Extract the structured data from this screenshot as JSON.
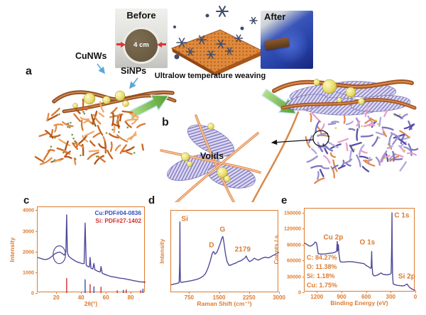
{
  "figure": {
    "panel_labels": {
      "a": "a",
      "b": "b",
      "c": "c",
      "d": "d",
      "e": "e"
    },
    "top": {
      "before_label": "Before",
      "before_diameter": "4 cm",
      "after_label": "After",
      "process_label": "Ultralow temperature weaving"
    },
    "schematic": {
      "cunws_label": "CuNWs",
      "sinps_label": "SiNPs",
      "voids_label": "Voids"
    },
    "colors": {
      "frame_orange": "#dd7b2f",
      "curve_purple": "#4f4b99",
      "legend_cu_blue": "#2f4fc4",
      "legend_si_red": "#d32f2f",
      "arrow_green": "#6cb43e",
      "sphere_yellow": "#e8dc6a",
      "wire_brown": "#9a5226",
      "mesh_purple": "#6a63b8"
    }
  },
  "chart_data": [
    {
      "id": "xrd",
      "type": "line",
      "panel": "c",
      "title": "",
      "xlabel": "2θ(°)",
      "ylabel": "Intensity",
      "xlim": [
        5,
        92
      ],
      "ylim": [
        0,
        4150
      ],
      "x_ticks": [
        20,
        40,
        60,
        80
      ],
      "y_ticks": [
        0,
        1000,
        2000,
        3000,
        4000
      ],
      "grid": false,
      "legend_position": "top-right",
      "legend": [
        {
          "label": "Cu:PDF#04-0836",
          "color": "#2f4fc4"
        },
        {
          "label": "Si: PDF#27-1402",
          "color": "#d32f2f"
        }
      ],
      "series": [
        {
          "name": "CuNWs/SiNPs XRD pattern",
          "color": "#4f4b99",
          "points": [
            [
              5,
              1720
            ],
            [
              7,
              1680
            ],
            [
              9,
              1640
            ],
            [
              11,
              1620
            ],
            [
              13,
              1640
            ],
            [
              15,
              1700
            ],
            [
              17,
              1800
            ],
            [
              19,
              1900
            ],
            [
              21,
              1960
            ],
            [
              23,
              1980
            ],
            [
              25,
              1900
            ],
            [
              26.5,
              1830
            ],
            [
              27.8,
              2000
            ],
            [
              28.4,
              3780
            ],
            [
              29,
              1950
            ],
            [
              30,
              1780
            ],
            [
              31.5,
              1700
            ],
            [
              33,
              1640
            ],
            [
              35,
              1560
            ],
            [
              37,
              1500
            ],
            [
              39,
              1460
            ],
            [
              41,
              1420
            ],
            [
              42.5,
              1420
            ],
            [
              43.3,
              3380
            ],
            [
              44.2,
              1340
            ],
            [
              45.5,
              1280
            ],
            [
              46.8,
              1260
            ],
            [
              47.3,
              1720
            ],
            [
              48,
              1200
            ],
            [
              49.5,
              1160
            ],
            [
              50.4,
              1430
            ],
            [
              51.2,
              1120
            ],
            [
              52.5,
              1080
            ],
            [
              54,
              1040
            ],
            [
              55.5,
              1020
            ],
            [
              56.1,
              1280
            ],
            [
              57,
              960
            ],
            [
              58.5,
              920
            ],
            [
              60,
              880
            ],
            [
              62,
              840
            ],
            [
              64,
              800
            ],
            [
              66,
              780
            ],
            [
              68,
              760
            ],
            [
              70,
              730
            ],
            [
              72,
              710
            ],
            [
              74,
              700
            ],
            [
              76,
              680
            ],
            [
              78,
              650
            ],
            [
              80,
              630
            ],
            [
              82,
              600
            ],
            [
              84,
              580
            ],
            [
              86,
              560
            ],
            [
              88,
              540
            ],
            [
              90,
              530
            ],
            [
              92,
              520
            ]
          ]
        }
      ],
      "reference_sticks": [
        {
          "name": "Si PDF#27-1402",
          "color": "#d32f2f",
          "peaks": [
            [
              28.4,
              720
            ],
            [
              47.3,
              430
            ],
            [
              56.1,
              300
            ],
            [
              69.2,
              130
            ],
            [
              76.4,
              170
            ],
            [
              88.1,
              140
            ]
          ]
        },
        {
          "name": "Cu PDF#04-0836",
          "color": "#2f4fc4",
          "peaks": [
            [
              43.3,
              660
            ],
            [
              50.4,
              320
            ],
            [
              74.1,
              150
            ],
            [
              89.9,
              210
            ]
          ]
        }
      ],
      "annotations": [
        {
          "type": "ellipse",
          "x": 22.5,
          "y": 1850,
          "rx": 5,
          "ry": 430
        }
      ]
    },
    {
      "id": "raman",
      "type": "line",
      "panel": "d",
      "title": "",
      "xlabel": "Raman Shift (cm⁻¹)",
      "ylabel": "Intensity",
      "xlim": [
        300,
        3000
      ],
      "ylim": [
        0,
        1100
      ],
      "x_ticks": [
        750,
        1500,
        2250,
        3000
      ],
      "y_ticks": [],
      "grid": false,
      "peak_labels": [
        {
          "text": "Si",
          "x": 640,
          "y": 990
        },
        {
          "text": "D",
          "x": 1310,
          "y": 640
        },
        {
          "text": "G",
          "x": 1585,
          "y": 845
        },
        {
          "text": "2179",
          "x": 2090,
          "y": 575
        }
      ],
      "series": [
        {
          "name": "Raman spectrum",
          "color": "#4f4b99",
          "points": [
            [
              300,
              110
            ],
            [
              360,
              118
            ],
            [
              420,
              125
            ],
            [
              470,
              132
            ],
            [
              500,
              140
            ],
            [
              515,
              400
            ],
            [
              520,
              950
            ],
            [
              527,
              300
            ],
            [
              535,
              150
            ],
            [
              560,
              142
            ],
            [
              620,
              148
            ],
            [
              700,
              155
            ],
            [
              780,
              162
            ],
            [
              860,
              172
            ],
            [
              940,
              182
            ],
            [
              1020,
              198
            ],
            [
              1100,
              225
            ],
            [
              1160,
              260
            ],
            [
              1220,
              330
            ],
            [
              1280,
              430
            ],
            [
              1330,
              530
            ],
            [
              1360,
              555
            ],
            [
              1400,
              520
            ],
            [
              1440,
              540
            ],
            [
              1480,
              590
            ],
            [
              1530,
              660
            ],
            [
              1570,
              735
            ],
            [
              1595,
              755
            ],
            [
              1620,
              680
            ],
            [
              1660,
              520
            ],
            [
              1700,
              420
            ],
            [
              1750,
              370
            ],
            [
              1800,
              375
            ],
            [
              1860,
              390
            ],
            [
              1920,
              400
            ],
            [
              1980,
              420
            ],
            [
              2040,
              430
            ],
            [
              2100,
              450
            ],
            [
              2150,
              470
            ],
            [
              2179,
              495
            ],
            [
              2210,
              455
            ],
            [
              2260,
              420
            ],
            [
              2320,
              435
            ],
            [
              2380,
              465
            ],
            [
              2430,
              450
            ],
            [
              2480,
              440
            ],
            [
              2540,
              455
            ],
            [
              2600,
              470
            ],
            [
              2660,
              480
            ],
            [
              2720,
              470
            ],
            [
              2780,
              480
            ],
            [
              2840,
              500
            ],
            [
              2900,
              515
            ],
            [
              2950,
              530
            ],
            [
              3000,
              545
            ]
          ]
        }
      ]
    },
    {
      "id": "xps",
      "type": "line",
      "panel": "e",
      "title": "",
      "xlabel": "Binding Energy (eV)",
      "ylabel": "Counts / s",
      "xlim": [
        1350,
        0
      ],
      "ylim": [
        0,
        158000
      ],
      "x_ticks": [
        1200,
        900,
        600,
        300,
        0
      ],
      "y_ticks": [
        0,
        30000,
        60000,
        90000,
        120000,
        150000
      ],
      "grid": false,
      "peak_labels": [
        {
          "text": "Cu 2p",
          "x": 1000,
          "y": 103000
        },
        {
          "text": "O 1s",
          "x": 585,
          "y": 94000
        },
        {
          "text": "C 1s",
          "x": 165,
          "y": 144000
        },
        {
          "text": "Si 2p",
          "x": 105,
          "y": 30000
        }
      ],
      "composition": [
        "C: 84.27%",
        "O: 11.38%",
        "Si: 1.18%",
        "Cu: 1.75%"
      ],
      "series": [
        {
          "name": "XPS survey spectrum",
          "color": "#4f4b99",
          "points": [
            [
              1350,
              93000
            ],
            [
              1320,
              90000
            ],
            [
              1300,
              88000
            ],
            [
              1280,
              87000
            ],
            [
              1260,
              88500
            ],
            [
              1240,
              91000
            ],
            [
              1220,
              95000
            ],
            [
              1205,
              93000
            ],
            [
              1195,
              85000
            ],
            [
              1185,
              73000
            ],
            [
              1150,
              72000
            ],
            [
              1100,
              72500
            ],
            [
              1050,
              73500
            ],
            [
              1000,
              74500
            ],
            [
              975,
              76000
            ],
            [
              960,
              77000
            ],
            [
              952,
              96000
            ],
            [
              948,
              78000
            ],
            [
              938,
              90000
            ],
            [
              930,
              72000
            ],
            [
              920,
              60000
            ],
            [
              910,
              57500
            ],
            [
              880,
              57000
            ],
            [
              840,
              57500
            ],
            [
              800,
              58000
            ],
            [
              760,
              57500
            ],
            [
              720,
              56500
            ],
            [
              700,
              56000
            ],
            [
              680,
              55500
            ],
            [
              660,
              55000
            ],
            [
              640,
              54500
            ],
            [
              620,
              53500
            ],
            [
              610,
              52000
            ],
            [
              600,
              50500
            ],
            [
              580,
              49000
            ],
            [
              560,
              47000
            ],
            [
              545,
              45500
            ],
            [
              538,
              46000
            ],
            [
              532,
              77000
            ],
            [
              528,
              50000
            ],
            [
              520,
              34000
            ],
            [
              505,
              31500
            ],
            [
              490,
              31000
            ],
            [
              470,
              32000
            ],
            [
              450,
              33500
            ],
            [
              430,
              35500
            ],
            [
              415,
              36500
            ],
            [
              405,
              35000
            ],
            [
              395,
              34000
            ],
            [
              370,
              33500
            ],
            [
              350,
              33000
            ],
            [
              330,
              33500
            ],
            [
              310,
              34000
            ],
            [
              295,
              36000
            ],
            [
              288,
              90000
            ],
            [
              285,
              150000
            ],
            [
              281,
              70000
            ],
            [
              277,
              30000
            ],
            [
              270,
              16000
            ],
            [
              250,
              14500
            ],
            [
              230,
              13500
            ],
            [
              210,
              13000
            ],
            [
              180,
              12500
            ],
            [
              150,
              12000
            ],
            [
              130,
              13000
            ],
            [
              115,
              14500
            ],
            [
              100,
              15500
            ],
            [
              90,
              13000
            ],
            [
              75,
              10000
            ],
            [
              60,
              8000
            ],
            [
              40,
              6000
            ],
            [
              20,
              4500
            ],
            [
              0,
              3500
            ]
          ]
        }
      ]
    }
  ]
}
